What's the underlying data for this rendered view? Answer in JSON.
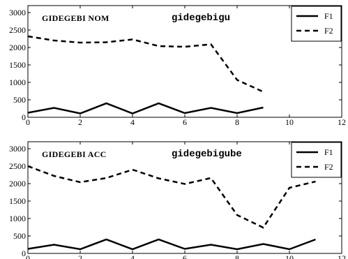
{
  "chart_data": [
    {
      "type": "line",
      "panel_label": "GIDEGEBI NOM",
      "word": "gidegebigu",
      "xlim": [
        0,
        12
      ],
      "ylim": [
        0,
        3200
      ],
      "xticks": [
        0,
        2,
        4,
        6,
        8,
        10,
        12
      ],
      "yticks": [
        0,
        500,
        1000,
        1500,
        2000,
        2500,
        3000
      ],
      "grid": false,
      "legend_position": "top-right",
      "series": [
        {
          "name": "F1",
          "style": "solid",
          "color": "#000000",
          "x": [
            0,
            1,
            2,
            3,
            4,
            5,
            6,
            7,
            8,
            9
          ],
          "y": [
            130,
            270,
            110,
            400,
            110,
            400,
            120,
            270,
            120,
            280
          ]
        },
        {
          "name": "F2",
          "style": "dashed",
          "color": "#000000",
          "x": [
            0,
            1,
            2,
            3,
            4,
            5,
            6,
            7,
            8,
            9
          ],
          "y": [
            2320,
            2200,
            2140,
            2150,
            2230,
            2040,
            2020,
            2090,
            1070,
            730
          ]
        }
      ]
    },
    {
      "type": "line",
      "panel_label": "GIDEGEBI ACC",
      "word": "gidegebigube",
      "xlim": [
        0,
        12
      ],
      "ylim": [
        0,
        3200
      ],
      "xticks": [
        0,
        2,
        4,
        6,
        8,
        10,
        12
      ],
      "yticks": [
        0,
        500,
        1000,
        1500,
        2000,
        2500,
        3000
      ],
      "grid": false,
      "legend_position": "top-right",
      "series": [
        {
          "name": "F1",
          "style": "solid",
          "color": "#000000",
          "x": [
            0,
            1,
            2,
            3,
            4,
            5,
            6,
            7,
            8,
            9,
            10,
            11
          ],
          "y": [
            130,
            250,
            120,
            400,
            120,
            400,
            130,
            250,
            120,
            270,
            120,
            400
          ]
        },
        {
          "name": "F2",
          "style": "dashed",
          "color": "#000000",
          "x": [
            0,
            1,
            2,
            3,
            4,
            5,
            6,
            7,
            8,
            9,
            10,
            11
          ],
          "y": [
            2500,
            2220,
            2040,
            2160,
            2400,
            2150,
            1990,
            2160,
            1100,
            740,
            1880,
            2060
          ]
        }
      ]
    }
  ]
}
